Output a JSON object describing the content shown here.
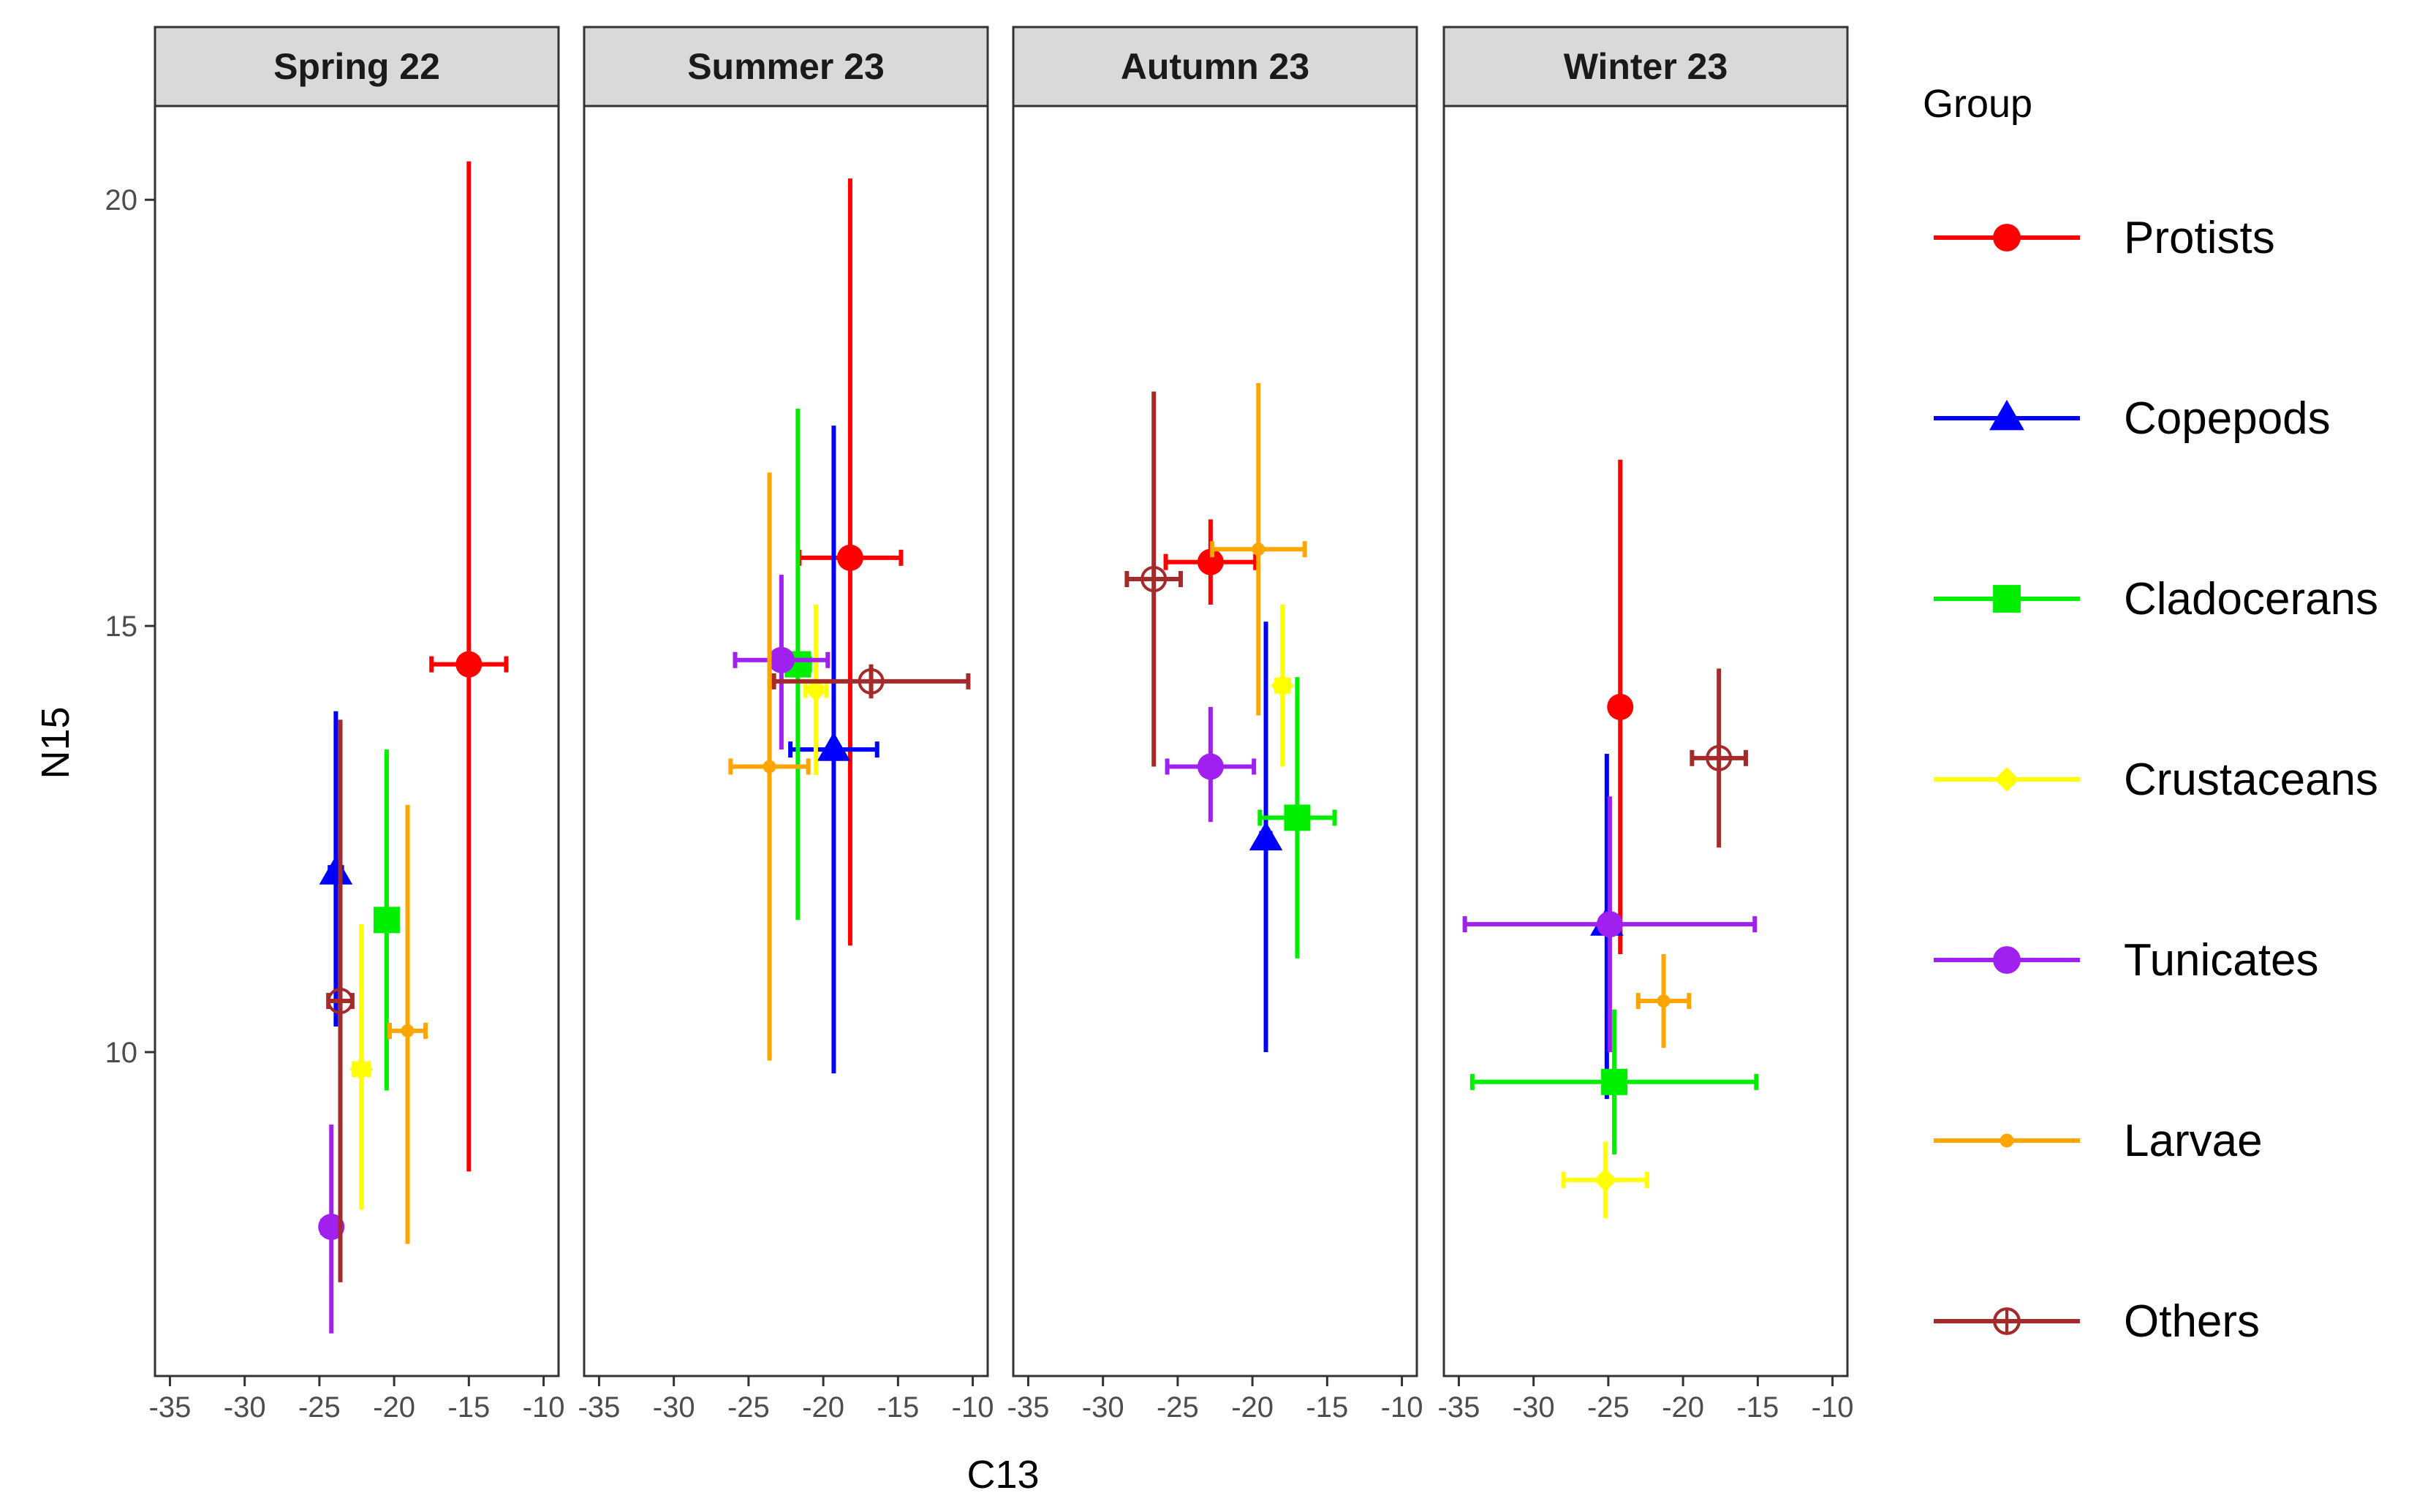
{
  "chart_data": {
    "type": "scatter",
    "xlabel": "C13",
    "ylabel": "N15",
    "xlim": [
      -36,
      -9
    ],
    "ylim": [
      6.2,
      21.1
    ],
    "xticks": [
      -35,
      -30,
      -25,
      -20,
      -15,
      -10
    ],
    "yticks": [
      10,
      15,
      20
    ],
    "grid": false,
    "legend_title": "Group",
    "legend_position": "right",
    "groups": [
      {
        "name": "Protists",
        "color": "#ff0000",
        "shape": "circle"
      },
      {
        "name": "Copepods",
        "color": "#0000ff",
        "shape": "triangle"
      },
      {
        "name": "Cladocerans",
        "color": "#00ee00",
        "shape": "square"
      },
      {
        "name": "Crustaceans",
        "color": "#ffff00",
        "shape": "diamond"
      },
      {
        "name": "Tunicates",
        "color": "#a020f0",
        "shape": "circle"
      },
      {
        "name": "Larvae",
        "color": "#ffa500",
        "shape": "small-circle"
      },
      {
        "name": "Others",
        "color": "#a52a2a",
        "shape": "open-circle-plus"
      }
    ],
    "panels": [
      {
        "title": "Spring 22",
        "points": [
          {
            "group": "Protists",
            "x": -15.0,
            "y": 14.55,
            "xerr": 2.5,
            "yerr_lo": 5.95,
            "yerr_hi": 5.9
          },
          {
            "group": "Copepods",
            "x": -23.9,
            "y": 12.1,
            "xerr": 0.4,
            "yerr_lo": 1.8,
            "yerr_hi": 1.9
          },
          {
            "group": "Cladocerans",
            "x": -20.5,
            "y": 11.55,
            "xerr": 0.5,
            "yerr_lo": 2.0,
            "yerr_hi": 2.0
          },
          {
            "group": "Crustaceans",
            "x": -22.2,
            "y": 9.8,
            "xerr": 0.5,
            "yerr_lo": 1.65,
            "yerr_hi": 1.7
          },
          {
            "group": "Tunicates",
            "x": -24.2,
            "y": 7.95,
            "xerr": 0.6,
            "yerr_lo": 1.25,
            "yerr_hi": 1.2
          },
          {
            "group": "Larvae",
            "x": -19.1,
            "y": 10.25,
            "xerr": 1.2,
            "yerr_lo": 2.5,
            "yerr_hi": 2.65
          },
          {
            "group": "Others",
            "x": -23.6,
            "y": 10.6,
            "xerr": 0.8,
            "yerr_lo": 3.3,
            "yerr_hi": 3.3
          }
        ]
      },
      {
        "title": "Summer 23",
        "points": [
          {
            "group": "Protists",
            "x": -18.2,
            "y": 15.8,
            "xerr": 3.4,
            "yerr_lo": 4.55,
            "yerr_hi": 4.45
          },
          {
            "group": "Copepods",
            "x": -19.3,
            "y": 13.55,
            "xerr": 2.9,
            "yerr_lo": 3.8,
            "yerr_hi": 3.8
          },
          {
            "group": "Cladocerans",
            "x": -21.7,
            "y": 14.55,
            "xerr": 0.8,
            "yerr_lo": 3.0,
            "yerr_hi": 3.0
          },
          {
            "group": "Crustaceans",
            "x": -20.5,
            "y": 14.25,
            "xerr": 0.7,
            "yerr_lo": 1.0,
            "yerr_hi": 1.0
          },
          {
            "group": "Tunicates",
            "x": -22.8,
            "y": 14.6,
            "xerr": 3.1,
            "yerr_lo": 1.05,
            "yerr_hi": 1.0
          },
          {
            "group": "Larvae",
            "x": -23.6,
            "y": 13.35,
            "xerr": 2.6,
            "yerr_lo": 3.45,
            "yerr_hi": 3.45
          },
          {
            "group": "Others",
            "x": -16.8,
            "y": 14.35,
            "xerr": 6.5,
            "yerr_lo": 0.2,
            "yerr_hi": 0.2
          }
        ]
      },
      {
        "title": "Autumn 23",
        "points": [
          {
            "group": "Protists",
            "x": -22.8,
            "y": 15.75,
            "xerr": 3.0,
            "yerr_lo": 0.5,
            "yerr_hi": 0.5
          },
          {
            "group": "Copepods",
            "x": -19.1,
            "y": 12.5,
            "xerr": 0.3,
            "yerr_lo": 2.5,
            "yerr_hi": 2.55
          },
          {
            "group": "Cladocerans",
            "x": -17.0,
            "y": 12.75,
            "xerr": 2.5,
            "yerr_lo": 1.65,
            "yerr_hi": 1.65
          },
          {
            "group": "Crustaceans",
            "x": -18.0,
            "y": 14.3,
            "xerr": 0.4,
            "yerr_lo": 0.95,
            "yerr_hi": 0.95
          },
          {
            "group": "Tunicates",
            "x": -22.8,
            "y": 13.35,
            "xerr": 2.9,
            "yerr_lo": 0.65,
            "yerr_hi": 0.7
          },
          {
            "group": "Larvae",
            "x": -19.6,
            "y": 15.9,
            "xerr": 3.1,
            "yerr_lo": 1.95,
            "yerr_hi": 1.95
          },
          {
            "group": "Others",
            "x": -26.6,
            "y": 15.55,
            "xerr": 1.8,
            "yerr_lo": 2.2,
            "yerr_hi": 2.2
          }
        ]
      },
      {
        "title": "Winter 23",
        "points": [
          {
            "group": "Protists",
            "x": -24.2,
            "y": 14.05,
            "xerr": 0.2,
            "yerr_lo": 2.9,
            "yerr_hi": 2.9
          },
          {
            "group": "Copepods",
            "x": -25.1,
            "y": 11.5,
            "xerr": 0.2,
            "yerr_lo": 2.05,
            "yerr_hi": 2.0
          },
          {
            "group": "Cladocerans",
            "x": -24.6,
            "y": 9.65,
            "xerr": 9.5,
            "yerr_lo": 0.85,
            "yerr_hi": 0.85
          },
          {
            "group": "Crustaceans",
            "x": -25.2,
            "y": 8.5,
            "xerr": 2.8,
            "yerr_lo": 0.45,
            "yerr_hi": 0.45
          },
          {
            "group": "Tunicates",
            "x": -24.9,
            "y": 11.5,
            "xerr": 9.7,
            "yerr_lo": 1.5,
            "yerr_hi": 1.5
          },
          {
            "group": "Larvae",
            "x": -21.3,
            "y": 10.6,
            "xerr": 1.7,
            "yerr_lo": 0.55,
            "yerr_hi": 0.55
          },
          {
            "group": "Others",
            "x": -17.6,
            "y": 13.45,
            "xerr": 1.8,
            "yerr_lo": 1.05,
            "yerr_hi": 1.05
          }
        ]
      }
    ]
  }
}
